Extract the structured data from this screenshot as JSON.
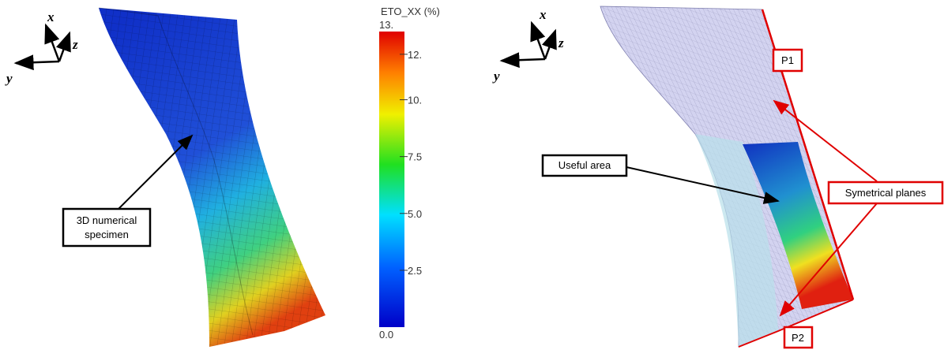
{
  "left_panel": {
    "axes": {
      "x": "x",
      "y": "y",
      "z": "z"
    },
    "callout": [
      "3D numerical",
      "specimen"
    ],
    "colorbar": {
      "title": "ETO_XX (%)",
      "range": [
        0,
        13
      ],
      "ticks": [
        {
          "value": 13,
          "label": "13."
        },
        {
          "value": 12,
          "label": "12."
        },
        {
          "value": 10,
          "label": "10."
        },
        {
          "value": 7.5,
          "label": "7.5"
        },
        {
          "value": 5,
          "label": "5.0"
        },
        {
          "value": 2.5,
          "label": "2.5"
        },
        {
          "value": 0,
          "label": "0.0"
        }
      ]
    }
  },
  "right_panel": {
    "axes": {
      "x": "x",
      "y": "y",
      "z": "z"
    },
    "useful_area": "Useful area",
    "symmetry": "Symetrical planes",
    "planes": [
      "P1",
      "P2"
    ]
  }
}
